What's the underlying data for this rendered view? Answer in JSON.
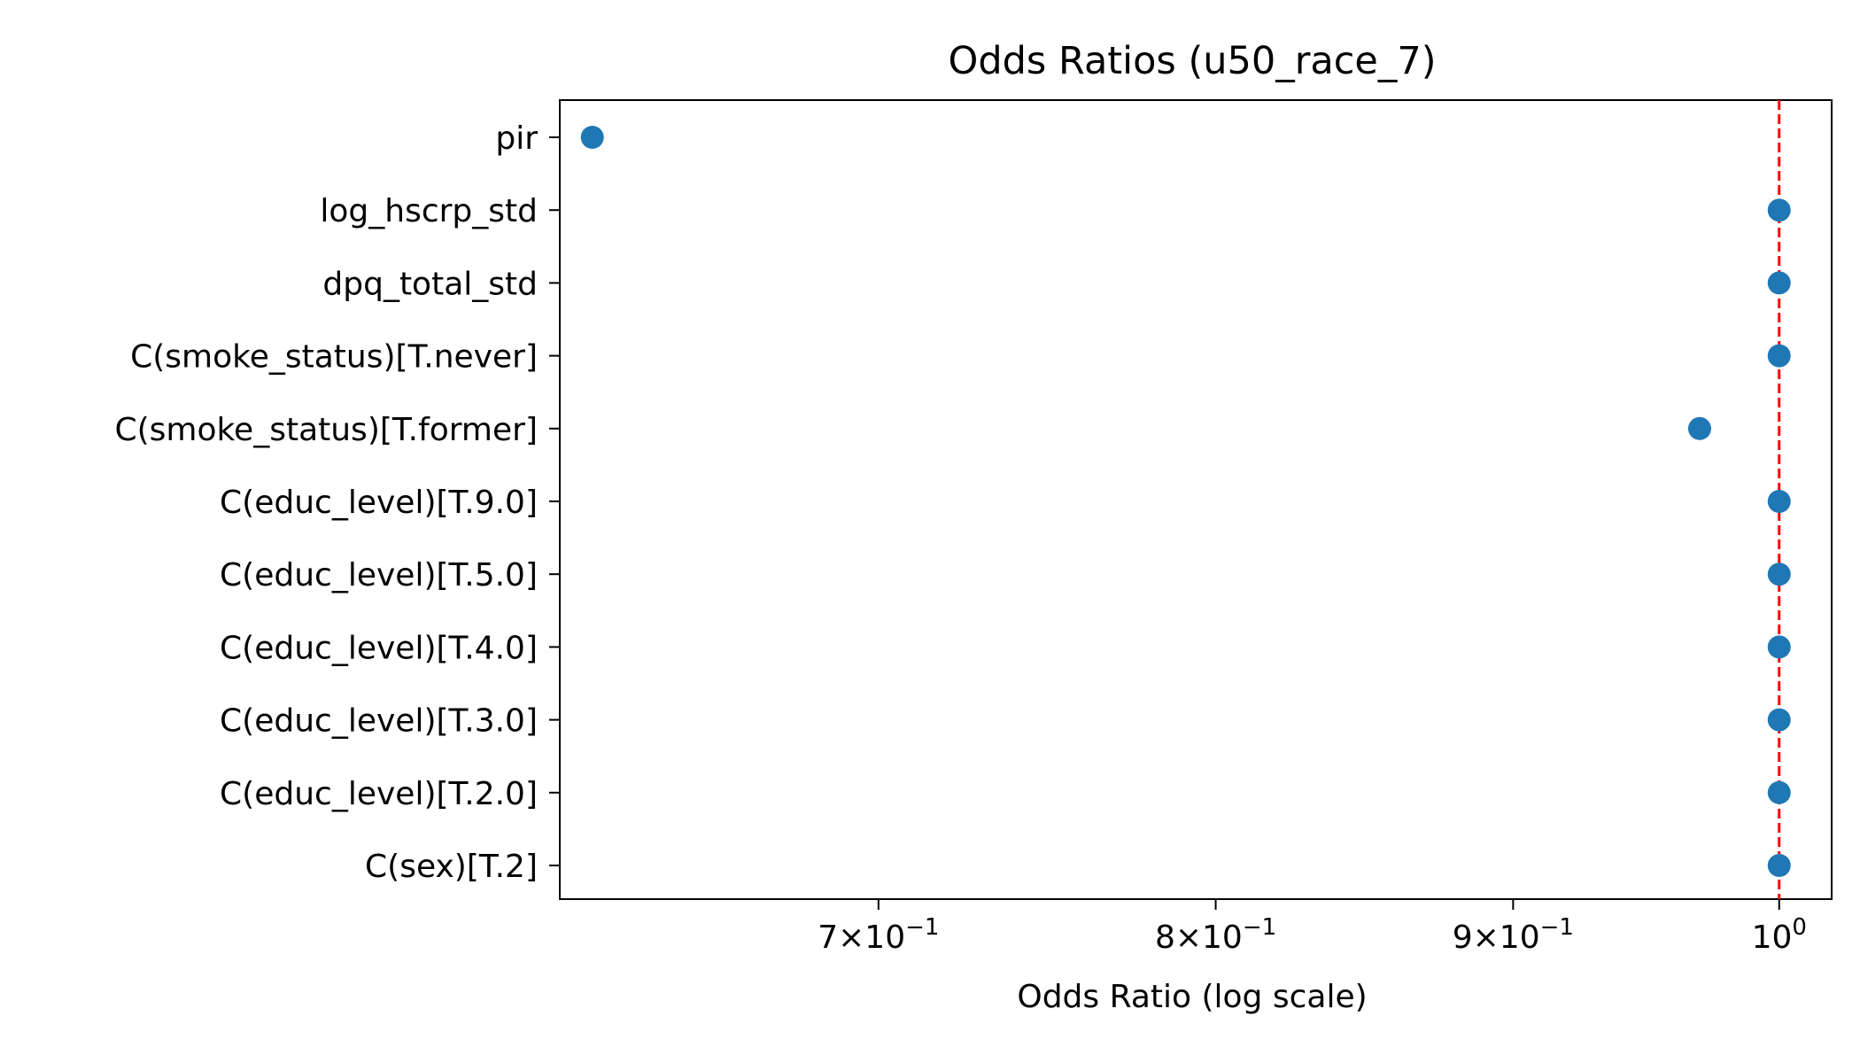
{
  "chart_data": {
    "type": "scatter",
    "title": "Odds Ratios (u50_race_7)",
    "xlabel": "Odds Ratio (log scale)",
    "ylabel": "",
    "x_scale": "log",
    "xlim": [
      0.617,
      1.021
    ],
    "x_ticks": [
      {
        "value": 0.7,
        "mantissa": "7",
        "exponent": "−1"
      },
      {
        "value": 0.8,
        "mantissa": "8",
        "exponent": "−1"
      },
      {
        "value": 0.9,
        "mantissa": "9",
        "exponent": "−1"
      },
      {
        "value": 1.0,
        "mantissa": "",
        "exponent": "0"
      }
    ],
    "categories": [
      "pir",
      "log_hscrp_std",
      "dpq_total_std",
      "C(smoke_status)[T.never]",
      "C(smoke_status)[T.former]",
      "C(educ_level)[T.9.0]",
      "C(educ_level)[T.5.0]",
      "C(educ_level)[T.4.0]",
      "C(educ_level)[T.3.0]",
      "C(educ_level)[T.2.0]",
      "C(sex)[T.2]"
    ],
    "values": [
      0.625,
      1.0,
      1.0,
      1.0,
      0.969,
      1.0,
      1.0,
      1.0,
      1.0,
      1.0,
      1.0
    ],
    "reference_line": {
      "value": 1.0,
      "style": "dashed",
      "color": "#ff0000"
    },
    "point_color": "#1f77b4",
    "grid": false,
    "legend": "none"
  }
}
